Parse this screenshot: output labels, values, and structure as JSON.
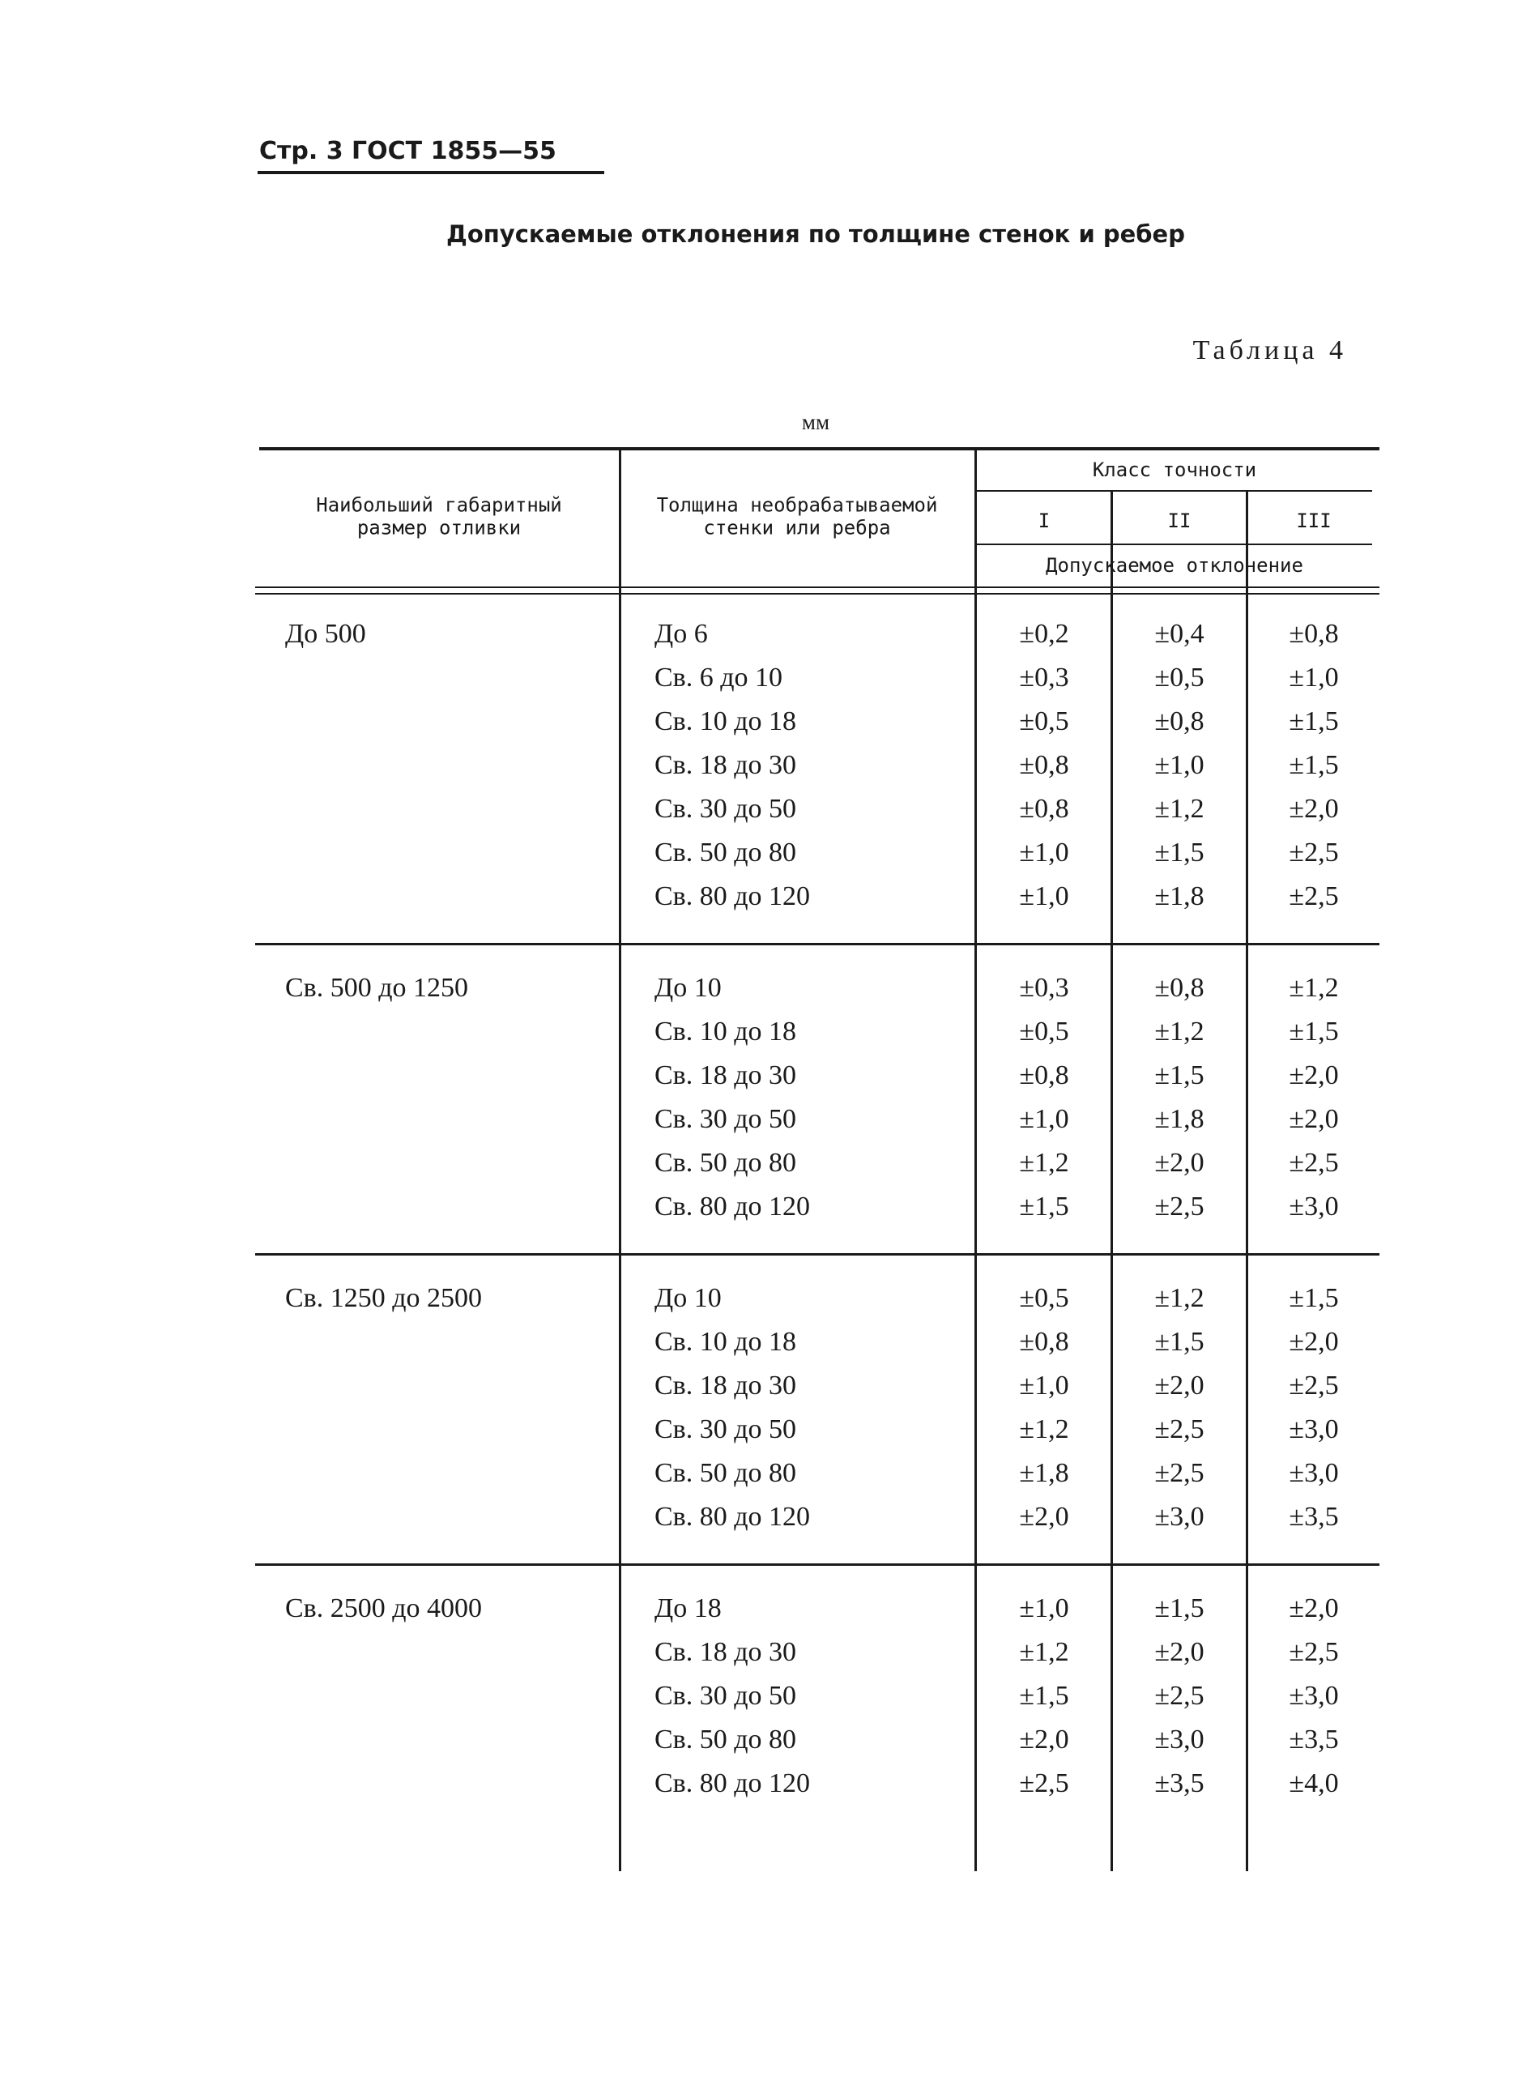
{
  "header": "Стр. 3 ГОСТ 1855—55",
  "title": "Допускаемые отклонения по толщине стенок и ребер",
  "table_label": "Таблица 4",
  "unit": "мм",
  "table": {
    "columns": {
      "size": "Наибольший габаритный размер отливки",
      "thickness": "Толщина необрабатываемой стенки или ребра",
      "class": "Класс точности",
      "classes": [
        "I",
        "II",
        "III"
      ],
      "deviation": "Допускаемое отклонение"
    },
    "groups": [
      {
        "size": "До 500",
        "rows": [
          [
            "До 6",
            "±0,2",
            "±0,4",
            "±0,8"
          ],
          [
            "Св. 6 до 10",
            "±0,3",
            "±0,5",
            "±1,0"
          ],
          [
            "Св. 10 до 18",
            "±0,5",
            "±0,8",
            "±1,5"
          ],
          [
            "Св. 18 до 30",
            "±0,8",
            "±1,0",
            "±1,5"
          ],
          [
            "Св. 30 до 50",
            "±0,8",
            "±1,2",
            "±2,0"
          ],
          [
            "Св. 50 до 80",
            "±1,0",
            "±1,5",
            "±2,5"
          ],
          [
            "Св. 80 до 120",
            "±1,0",
            "±1,8",
            "±2,5"
          ]
        ]
      },
      {
        "size": "Св. 500 до 1250",
        "rows": [
          [
            "До 10",
            "±0,3",
            "±0,8",
            "±1,2"
          ],
          [
            "Св. 10 до 18",
            "±0,5",
            "±1,2",
            "±1,5"
          ],
          [
            "Св. 18 до 30",
            "±0,8",
            "±1,5",
            "±2,0"
          ],
          [
            "Св. 30 до 50",
            "±1,0",
            "±1,8",
            "±2,0"
          ],
          [
            "Св. 50 до 80",
            "±1,2",
            "±2,0",
            "±2,5"
          ],
          [
            "Св. 80 до 120",
            "±1,5",
            "±2,5",
            "±3,0"
          ]
        ]
      },
      {
        "size": "Св. 1250 до 2500",
        "rows": [
          [
            "До 10",
            "±0,5",
            "±1,2",
            "±1,5"
          ],
          [
            "Св. 10 до 18",
            "±0,8",
            "±1,5",
            "±2,0"
          ],
          [
            "Св. 18 до 30",
            "±1,0",
            "±2,0",
            "±2,5"
          ],
          [
            "Св. 30 до 50",
            "±1,2",
            "±2,5",
            "±3,0"
          ],
          [
            "Св. 50 до 80",
            "±1,8",
            "±2,5",
            "±3,0"
          ],
          [
            "Св. 80 до 120",
            "±2,0",
            "±3,0",
            "±3,5"
          ]
        ]
      },
      {
        "size": "Св. 2500 до 4000",
        "rows": [
          [
            "До 18",
            "±1,0",
            "±1,5",
            "±2,0"
          ],
          [
            "Св. 18 до 30",
            "±1,2",
            "±2,0",
            "±2,5"
          ],
          [
            "Св. 30 до 50",
            "±1,5",
            "±2,5",
            "±3,0"
          ],
          [
            "Св. 50 до 80",
            "±2,0",
            "±3,0",
            "±3,5"
          ],
          [
            "Св. 80 до 120",
            "±2,5",
            "±3,5",
            "±4,0"
          ]
        ]
      }
    ]
  }
}
